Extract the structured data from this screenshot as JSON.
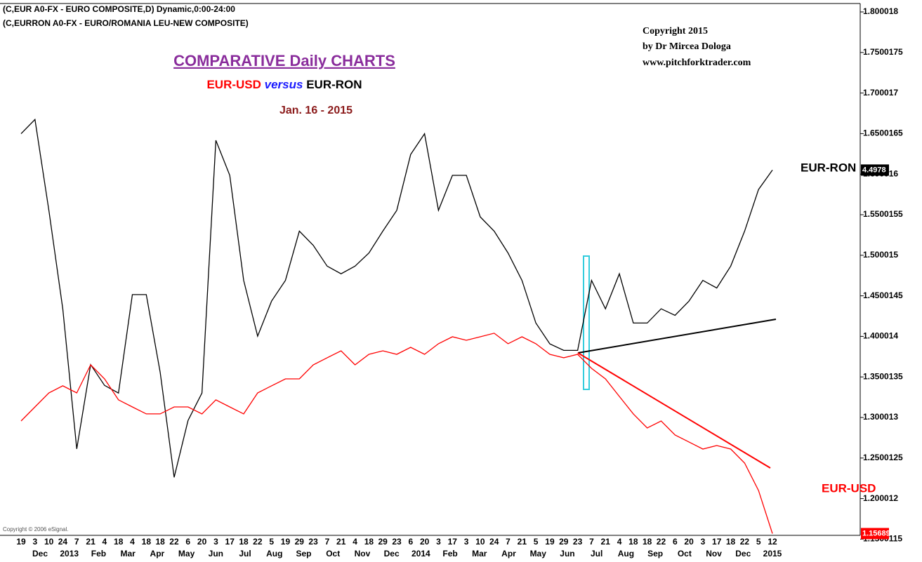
{
  "header": [
    "(C,EUR A0-FX - EURO COMPOSITE,D) Dynamic,0:00-24:00",
    "(C,EURRON A0-FX - EURO/ROMANIA LEU-NEW COMPOSITE)"
  ],
  "copyright": [
    "Copyright 2015",
    "by Dr Mircea Dologa",
    "www.pitchforktrader.com"
  ],
  "esignal": "Copyright © 2006 eSignal.",
  "chart_data": {
    "type": "line",
    "title": "COMPARATIVE Daily CHARTS",
    "subtitle": [
      "EUR-USD",
      "versus",
      "EUR-RON"
    ],
    "annotation": "Jan. 16 - 2015",
    "categories": [
      "19",
      "3",
      "10",
      "24",
      "7",
      "21",
      "4",
      "18",
      "4",
      "18",
      "18",
      "22",
      "6",
      "20",
      "3",
      "17",
      "18",
      "22",
      "5",
      "19",
      "29",
      "23",
      "7",
      "21",
      "4",
      "18",
      "29",
      "23",
      "6",
      "20",
      "3",
      "17",
      "3",
      "10",
      "24",
      "7",
      "21",
      "5",
      "19",
      "29",
      "23",
      "7",
      "21",
      "4",
      "18",
      "18",
      "22",
      "6",
      "20",
      "3",
      "17",
      "18",
      "22",
      "5",
      "12"
    ],
    "months": [
      "Dec",
      "2013",
      "Feb",
      "Mar",
      "Apr",
      "May",
      "Jun",
      "Jul",
      "Aug",
      "Sep",
      "Oct",
      "Nov",
      "Dec",
      "2014",
      "Feb",
      "Mar",
      "Apr",
      "May",
      "Jun",
      "Jul",
      "Aug",
      "Sep",
      "Oct",
      "Nov",
      "Dec",
      "2015"
    ],
    "series": [
      {
        "name": "EUR-RON",
        "color": "#000000",
        "axis": "y2",
        "last_label": "4.4978",
        "values": [
          4.531,
          4.544,
          4.461,
          4.371,
          4.243,
          4.32,
          4.301,
          4.294,
          4.384,
          4.384,
          4.313,
          4.217,
          4.269,
          4.294,
          4.525,
          4.493,
          4.397,
          4.346,
          4.378,
          4.397,
          4.442,
          4.429,
          4.41,
          4.403,
          4.41,
          4.422,
          4.442,
          4.461,
          4.512,
          4.531,
          4.461,
          4.493,
          4.493,
          4.455,
          4.442,
          4.422,
          4.397,
          4.358,
          4.339,
          4.333,
          4.333,
          4.397,
          4.371,
          4.403,
          4.358,
          4.358,
          4.371,
          4.365,
          4.378,
          4.397,
          4.39,
          4.41,
          4.442,
          4.48,
          4.4978
        ]
      },
      {
        "name": "EUR-USD",
        "color": "#ff0000",
        "last_label": "1.15689",
        "values": [
          1.2957,
          1.313,
          1.3303,
          1.339,
          1.3303,
          1.3649,
          1.3476,
          1.3217,
          1.313,
          1.3044,
          1.3044,
          1.313,
          1.313,
          1.3044,
          1.3217,
          1.313,
          1.3044,
          1.3303,
          1.339,
          1.3476,
          1.3476,
          1.3649,
          1.3736,
          1.3822,
          1.3649,
          1.3779,
          1.3822,
          1.3779,
          1.3865,
          1.3779,
          1.3909,
          1.3995,
          1.3952,
          1.3995,
          1.4039,
          1.3909,
          1.3995,
          1.3909,
          1.3779,
          1.3736,
          1.3779,
          1.3606,
          1.3476,
          1.326,
          1.3044,
          1.2871,
          1.2957,
          1.2784,
          1.2698,
          1.2611,
          1.2654,
          1.2611,
          1.2438,
          1.21,
          1.15689
        ]
      }
    ],
    "ylim": [
      1.1547,
      1.8104
    ],
    "yticks": [
      1.800018,
      1.7500175,
      1.700017,
      1.6500165,
      1.600016,
      1.5500155,
      1.500015,
      1.4500145,
      1.400014,
      1.3500135,
      1.300013,
      1.2500125,
      1.200012,
      1.1500115
    ],
    "y2lim": [
      4.164,
      4.65
    ]
  }
}
